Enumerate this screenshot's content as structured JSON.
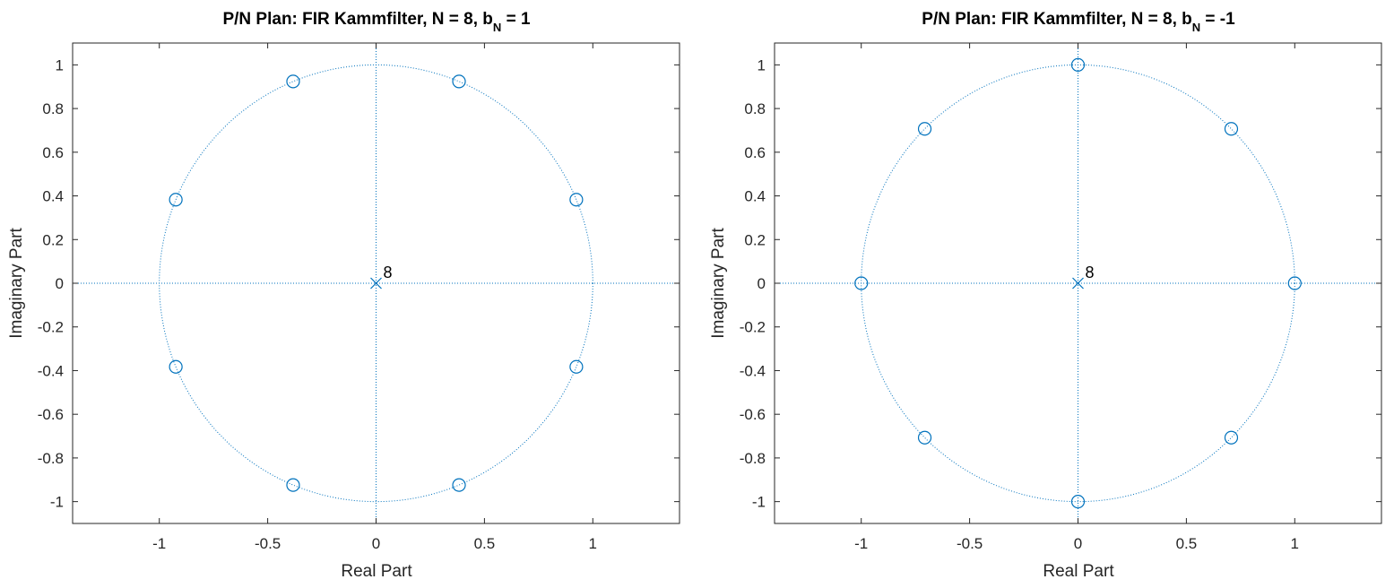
{
  "charts": [
    {
      "title_prefix": "P/N Plan: FIR Kammfilter, N = 8, b",
      "title_sub": "N",
      "title_suffix": " = 1",
      "xlabel": "Real Part",
      "ylabel": "Imaginary Part",
      "annotation": "8",
      "x_ticks": [
        "-1",
        "-0.5",
        "0",
        "0.5",
        "1"
      ],
      "y_ticks": [
        "1",
        "0.8",
        "0.6",
        "0.4",
        "0.2",
        "0",
        "-0.2",
        "-0.4",
        "-0.6",
        "-0.8",
        "-1"
      ]
    },
    {
      "title_prefix": "P/N Plan: FIR Kammfilter, N = 8, b",
      "title_sub": "N",
      "title_suffix": " = -1",
      "xlabel": "Real Part",
      "ylabel": "Imaginary Part",
      "annotation": "8",
      "x_ticks": [
        "-1",
        "-0.5",
        "0",
        "0.5",
        "1"
      ],
      "y_ticks": [
        "1",
        "0.8",
        "0.6",
        "0.4",
        "0.2",
        "0",
        "-0.2",
        "-0.4",
        "-0.6",
        "-0.8",
        "-1"
      ]
    }
  ],
  "chart_data": [
    {
      "type": "scatter",
      "title": "P/N Plan: FIR Kammfilter, N = 8, b_N = 1",
      "xlabel": "Real Part",
      "ylabel": "Imaginary Part",
      "xlim": [
        -1.4,
        1.4
      ],
      "ylim": [
        -1.1,
        1.1
      ],
      "x_ticks": [
        -1,
        -0.5,
        0,
        0.5,
        1
      ],
      "y_ticks": [
        -1,
        -0.8,
        -0.6,
        -0.4,
        -0.2,
        0,
        0.2,
        0.4,
        0.6,
        0.8,
        1
      ],
      "unit_circle": true,
      "axis_lines": true,
      "series": [
        {
          "marker": "circle",
          "x": [
            0.9239,
            0.3827,
            -0.3827,
            -0.9239,
            -0.9239,
            -0.3827,
            0.3827,
            0.9239
          ],
          "y": [
            0.3827,
            0.9239,
            0.9239,
            0.3827,
            -0.3827,
            -0.9239,
            -0.9239,
            -0.3827
          ]
        },
        {
          "marker": "x",
          "x": [
            0
          ],
          "y": [
            0
          ],
          "multiplicity": 8
        }
      ],
      "color": "#0072BD"
    },
    {
      "type": "scatter",
      "title": "P/N Plan: FIR Kammfilter, N = 8, b_N = -1",
      "xlabel": "Real Part",
      "ylabel": "Imaginary Part",
      "xlim": [
        -1.4,
        1.4
      ],
      "ylim": [
        -1.1,
        1.1
      ],
      "x_ticks": [
        -1,
        -0.5,
        0,
        0.5,
        1
      ],
      "y_ticks": [
        -1,
        -0.8,
        -0.6,
        -0.4,
        -0.2,
        0,
        0.2,
        0.4,
        0.6,
        0.8,
        1
      ],
      "unit_circle": true,
      "axis_lines": true,
      "series": [
        {
          "marker": "circle",
          "x": [
            1,
            0.7071,
            0,
            -0.7071,
            -1,
            -0.7071,
            0,
            0.7071
          ],
          "y": [
            0,
            0.7071,
            1,
            0.7071,
            0,
            -0.7071,
            -1,
            -0.7071
          ]
        },
        {
          "marker": "x",
          "x": [
            0
          ],
          "y": [
            0
          ],
          "multiplicity": 8
        }
      ],
      "color": "#0072BD"
    }
  ]
}
